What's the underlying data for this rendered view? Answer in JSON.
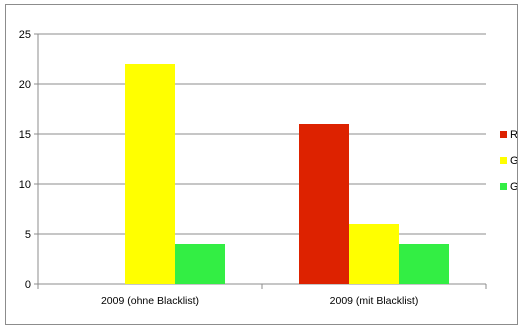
{
  "chart_data": {
    "type": "bar",
    "title": "",
    "xlabel": "",
    "ylabel": "",
    "categories": [
      "2009 (ohne Blacklist)",
      "2009 (mit Blacklist)"
    ],
    "series": [
      {
        "name": "Rot",
        "color": "#dd2200",
        "values": [
          0,
          16
        ]
      },
      {
        "name": "Gelb",
        "color": "#ffff00",
        "values": [
          22,
          6
        ]
      },
      {
        "name": "Grün",
        "color": "#33ee44",
        "values": [
          4,
          4
        ]
      }
    ],
    "ylim": [
      0,
      25
    ],
    "yticks": [
      0,
      5,
      10,
      15,
      20,
      25
    ],
    "grid": true,
    "legend": {
      "position": "right",
      "items": [
        "Rot",
        "Gelb",
        "Grün"
      ]
    }
  }
}
